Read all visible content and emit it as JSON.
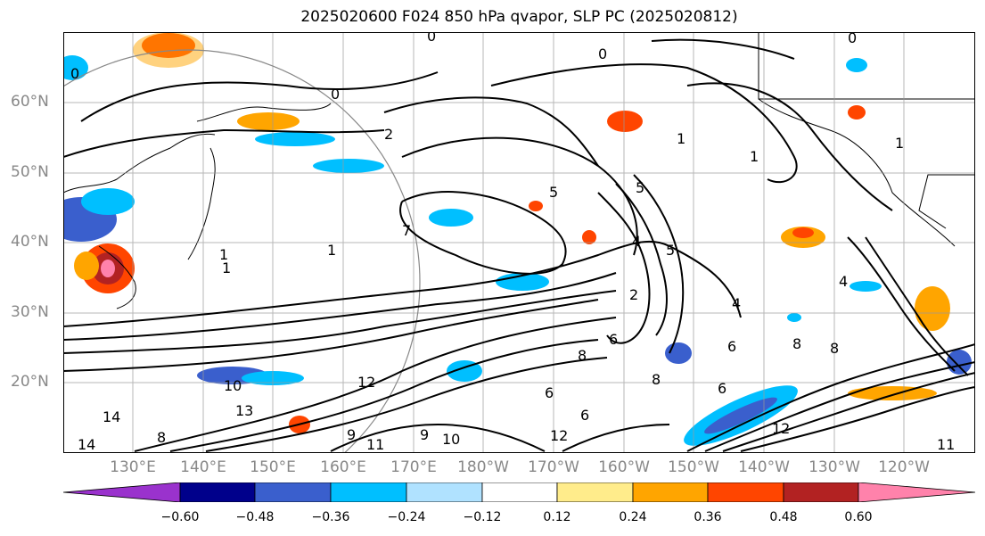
{
  "title": "2025020600 F024 850 hPa qvapor, SLP PC (2025020812)",
  "lat_labels": [
    "60°N",
    "50°N",
    "40°N",
    "30°N",
    "20°N"
  ],
  "lon_labels": [
    "130°E",
    "140°E",
    "150°E",
    "160°E",
    "170°E",
    "180°W",
    "170°W",
    "160°W",
    "150°W",
    "140°W",
    "130°W",
    "120°W"
  ],
  "colorbar": {
    "colors": [
      "#9a32cd",
      "#00008b",
      "#3a5fcd",
      "#00bfff",
      "#b0e2ff",
      "#ffffff",
      "#ffec8b",
      "#ffa500",
      "#ff4500",
      "#b22222",
      "#ff82ab"
    ],
    "ticks": [
      "−0.60",
      "−0.48",
      "−0.36",
      "−0.24",
      "−0.12",
      "0.12",
      "0.24",
      "0.36",
      "0.48",
      "0.60"
    ]
  },
  "contour_labels": [
    "0",
    "0",
    "0",
    "0",
    "0",
    "2",
    "1",
    "1",
    "1",
    "1",
    "1",
    "5",
    "5",
    "5",
    "4",
    "2",
    "7",
    "9",
    "9",
    "8",
    "8",
    "8",
    "8",
    "6",
    "6",
    "6",
    "6",
    "6",
    "8",
    "10",
    "10",
    "11",
    "11",
    "12",
    "12",
    "12",
    "13",
    "14",
    "14",
    "4",
    "4",
    "1"
  ],
  "layers": {
    "shading": "qvapor anomaly",
    "contours": "SLP"
  }
}
